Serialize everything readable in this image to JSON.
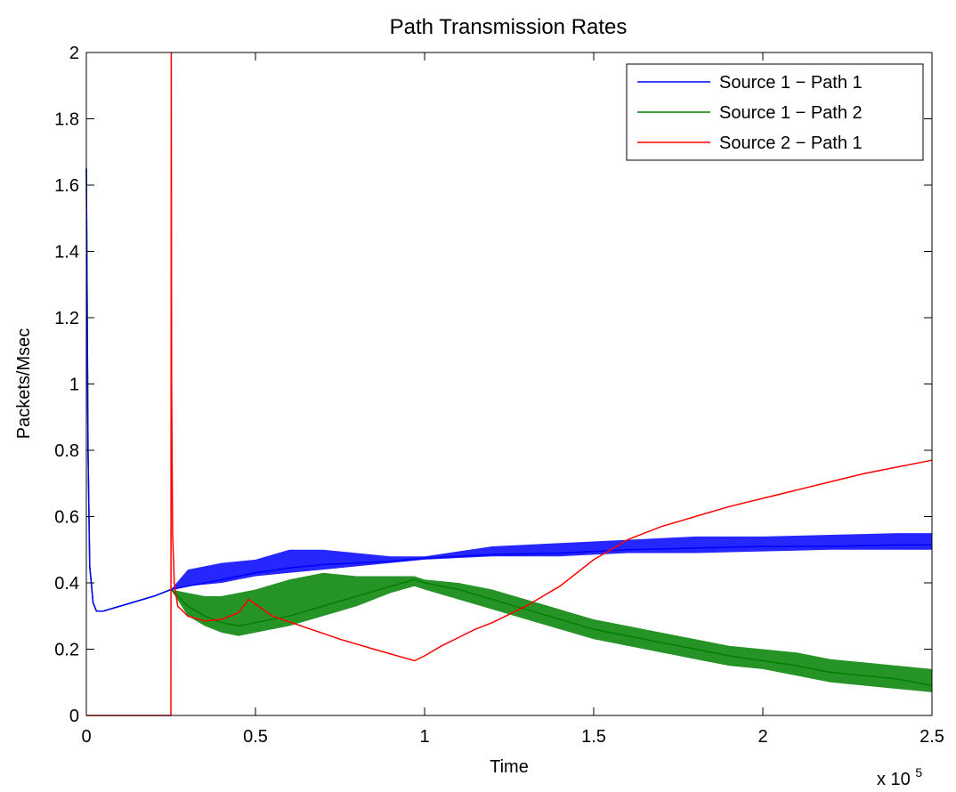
{
  "chart_data": {
    "type": "line",
    "title": "Path Transmission Rates",
    "xlabel": "Time",
    "ylabel": "Packets/Msec",
    "x_exponent_label": "x 10",
    "x_exponent": "5",
    "xlim": [
      0,
      250000
    ],
    "ylim": [
      0,
      2
    ],
    "x_ticks": [
      0,
      50000,
      100000,
      150000,
      200000,
      250000
    ],
    "x_tick_labels": [
      "0",
      "0.5",
      "1",
      "1.5",
      "2",
      "2.5"
    ],
    "y_ticks": [
      0,
      0.2,
      0.4,
      0.6,
      0.8,
      1,
      1.2,
      1.4,
      1.6,
      1.8,
      2
    ],
    "y_tick_labels": [
      "0",
      "0.2",
      "0.4",
      "0.6",
      "0.8",
      "1",
      "1.2",
      "1.4",
      "1.6",
      "1.8",
      "2"
    ],
    "grid": false,
    "legend_position": "top-right",
    "series": [
      {
        "name": "Source 1 − Path 1",
        "color": "#0000ff",
        "x": [
          0,
          500,
          1000,
          2000,
          3000,
          5000,
          10000,
          15000,
          20000,
          25000,
          30000,
          40000,
          50000,
          60000,
          70000,
          80000,
          90000,
          100000,
          120000,
          140000,
          160000,
          180000,
          200000,
          220000,
          240000,
          250000
        ],
        "y": [
          1.65,
          0.8,
          0.45,
          0.34,
          0.315,
          0.315,
          0.33,
          0.345,
          0.36,
          0.38,
          0.39,
          0.41,
          0.43,
          0.445,
          0.455,
          0.46,
          0.465,
          0.475,
          0.485,
          0.49,
          0.5,
          0.505,
          0.51,
          0.51,
          0.515,
          0.515
        ],
        "band_upper": [
          1.65,
          0.8,
          0.45,
          0.34,
          0.315,
          0.315,
          0.33,
          0.345,
          0.36,
          0.38,
          0.44,
          0.46,
          0.47,
          0.5,
          0.5,
          0.49,
          0.48,
          0.48,
          0.51,
          0.52,
          0.53,
          0.54,
          0.54,
          0.545,
          0.55,
          0.55
        ],
        "band_lower": [
          1.65,
          0.8,
          0.45,
          0.34,
          0.315,
          0.315,
          0.33,
          0.345,
          0.36,
          0.38,
          0.39,
          0.4,
          0.42,
          0.43,
          0.44,
          0.45,
          0.46,
          0.47,
          0.48,
          0.48,
          0.49,
          0.49,
          0.495,
          0.5,
          0.5,
          0.5
        ]
      },
      {
        "name": "Source 1 − Path 2",
        "color": "#008000",
        "x": [
          0,
          500,
          1000,
          2000,
          3000,
          5000,
          10000,
          15000,
          20000,
          25000,
          30000,
          35000,
          40000,
          45000,
          50000,
          60000,
          70000,
          80000,
          90000,
          97000,
          100000,
          110000,
          120000,
          130000,
          140000,
          150000,
          160000,
          170000,
          180000,
          190000,
          200000,
          210000,
          220000,
          230000,
          240000,
          250000
        ],
        "y": [
          1.65,
          0.8,
          0.45,
          0.34,
          0.315,
          0.315,
          0.33,
          0.345,
          0.36,
          0.38,
          0.33,
          0.3,
          0.28,
          0.27,
          0.28,
          0.3,
          0.33,
          0.36,
          0.39,
          0.41,
          0.4,
          0.38,
          0.35,
          0.32,
          0.29,
          0.26,
          0.24,
          0.22,
          0.2,
          0.18,
          0.165,
          0.15,
          0.13,
          0.12,
          0.11,
          0.09
        ],
        "band_upper": [
          1.65,
          0.8,
          0.45,
          0.34,
          0.315,
          0.315,
          0.33,
          0.345,
          0.36,
          0.38,
          0.37,
          0.36,
          0.36,
          0.37,
          0.38,
          0.41,
          0.43,
          0.42,
          0.42,
          0.42,
          0.41,
          0.4,
          0.38,
          0.35,
          0.32,
          0.29,
          0.27,
          0.25,
          0.23,
          0.21,
          0.2,
          0.19,
          0.17,
          0.16,
          0.15,
          0.14
        ],
        "band_lower": [
          1.65,
          0.8,
          0.45,
          0.34,
          0.315,
          0.315,
          0.33,
          0.345,
          0.36,
          0.38,
          0.3,
          0.27,
          0.25,
          0.24,
          0.25,
          0.27,
          0.3,
          0.33,
          0.37,
          0.39,
          0.38,
          0.35,
          0.32,
          0.29,
          0.26,
          0.23,
          0.21,
          0.19,
          0.17,
          0.15,
          0.14,
          0.12,
          0.1,
          0.09,
          0.08,
          0.07
        ]
      },
      {
        "name": "Source 2 − Path 1",
        "color": "#ff0000",
        "x": [
          0,
          25000,
          25100,
          25200,
          25500,
          26000,
          27000,
          30000,
          35000,
          40000,
          45000,
          48000,
          55000,
          65000,
          75000,
          85000,
          97000,
          100000,
          105000,
          110000,
          115000,
          120000,
          125000,
          130000,
          135000,
          140000,
          145000,
          150000,
          155000,
          160000,
          165000,
          170000,
          180000,
          190000,
          200000,
          210000,
          220000,
          230000,
          240000,
          250000
        ],
        "y": [
          0,
          0,
          2.0,
          1.0,
          0.55,
          0.4,
          0.33,
          0.3,
          0.285,
          0.29,
          0.31,
          0.35,
          0.3,
          0.265,
          0.23,
          0.2,
          0.165,
          0.18,
          0.21,
          0.235,
          0.26,
          0.28,
          0.305,
          0.33,
          0.36,
          0.39,
          0.43,
          0.47,
          0.5,
          0.53,
          0.55,
          0.57,
          0.6,
          0.63,
          0.655,
          0.68,
          0.705,
          0.73,
          0.75,
          0.77
        ]
      }
    ]
  }
}
